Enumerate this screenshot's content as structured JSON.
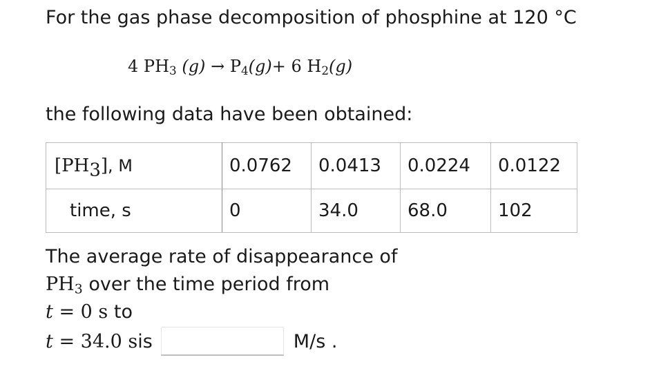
{
  "intro": "For the gas phase decomposition of phosphine at 120 °C",
  "equation": {
    "reactant_coef": "4",
    "reactant": "PH",
    "reactant_sub": "3",
    "reactant_state": "(g)",
    "arrow": "→",
    "product1": "P",
    "product1_sub": "4",
    "product1_state": "(g)",
    "plus": "+",
    "product2_coef": "6",
    "product2": "H",
    "product2_sub": "2",
    "product2_state": "(g)"
  },
  "lead": "the following data have been obtained:",
  "table": {
    "conc_label_open": "[PH",
    "conc_label_sub": "3",
    "conc_label_close": "]",
    "conc_unit": ", M",
    "time_label": "time, s",
    "concentrations": [
      "0.0762",
      "0.0413",
      "0.0224",
      "0.0122"
    ],
    "times": [
      "0",
      "34.0",
      "68.0",
      "102"
    ]
  },
  "question": {
    "line1": "The average rate of disappearance of",
    "species": "PH",
    "species_sub": "3",
    "line2_rest": " over the time period from",
    "t_var": "t",
    "equals": " = ",
    "t_start": "0 s",
    "to_word": " to",
    "t_end": "34.0 s",
    "is_word": " is",
    "answer_value": "",
    "answer_unit": "M/s ."
  }
}
